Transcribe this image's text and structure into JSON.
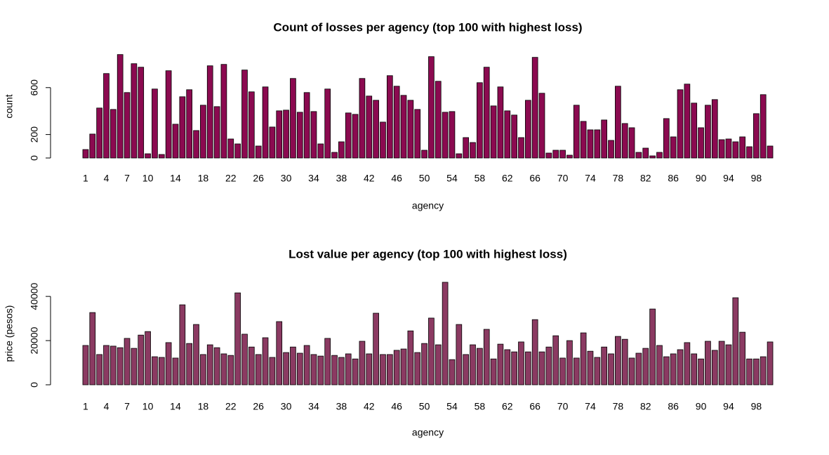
{
  "chart_data": [
    {
      "type": "bar",
      "title": "Count of losses per agency (top 100 with highest loss)",
      "x_label": "agency",
      "y_label": "count",
      "color": "#8b0a50",
      "categories": [
        "1",
        null,
        null,
        "4",
        null,
        null,
        "7",
        null,
        null,
        "10",
        null,
        null,
        null,
        "14",
        null,
        null,
        null,
        "18",
        null,
        null,
        null,
        "22",
        null,
        null,
        null,
        "26",
        null,
        null,
        null,
        "30",
        null,
        null,
        null,
        "34",
        null,
        null,
        null,
        "38",
        null,
        null,
        null,
        "42",
        null,
        null,
        null,
        "46",
        null,
        null,
        null,
        "50",
        null,
        null,
        null,
        "54",
        null,
        null,
        null,
        "58",
        null,
        null,
        null,
        "62",
        null,
        null,
        null,
        "66",
        null,
        null,
        null,
        "70",
        null,
        null,
        null,
        "74",
        null,
        null,
        null,
        "78",
        null,
        null,
        null,
        "82",
        null,
        null,
        null,
        "86",
        null,
        null,
        null,
        "90",
        null,
        null,
        null,
        "94",
        null,
        null,
        null,
        "98",
        null,
        null
      ],
      "values": [
        72,
        204,
        426,
        720,
        414,
        882,
        558,
        804,
        774,
        36,
        588,
        30,
        744,
        288,
        522,
        582,
        234,
        450,
        786,
        438,
        798,
        162,
        120,
        750,
        564,
        102,
        606,
        264,
        402,
        408,
        678,
        390,
        558,
        396,
        120,
        588,
        48,
        138,
        384,
        372,
        678,
        528,
        492,
        306,
        702,
        612,
        534,
        492,
        414,
        66,
        864,
        654,
        390,
        396,
        36,
        174,
        132,
        642,
        774,
        444,
        606,
        402,
        366,
        174,
        492,
        858,
        552,
        42,
        66,
        66,
        24,
        450,
        312,
        240,
        240,
        324,
        150,
        612,
        294,
        258,
        48,
        84,
        18,
        48,
        336,
        180,
        582,
        630,
        468,
        258,
        450,
        498,
        156,
        162,
        138,
        180,
        96,
        378,
        540,
        102
      ],
      "ylim": [
        0,
        880
      ],
      "yticks": [
        0,
        200,
        600
      ]
    },
    {
      "type": "bar",
      "title": "Lost value per agency (top 100 with highest loss)",
      "x_label": "agency",
      "y_label": "price (pesos)",
      "color": "#8b3a62",
      "categories": [
        "1",
        null,
        null,
        "4",
        null,
        null,
        "7",
        null,
        null,
        "10",
        null,
        null,
        null,
        "14",
        null,
        null,
        null,
        "18",
        null,
        null,
        null,
        "22",
        null,
        null,
        null,
        "26",
        null,
        null,
        null,
        "30",
        null,
        null,
        null,
        "34",
        null,
        null,
        null,
        "38",
        null,
        null,
        null,
        "42",
        null,
        null,
        null,
        "46",
        null,
        null,
        null,
        "50",
        null,
        null,
        null,
        "54",
        null,
        null,
        null,
        "58",
        null,
        null,
        null,
        "62",
        null,
        null,
        null,
        "66",
        null,
        null,
        null,
        "70",
        null,
        null,
        null,
        "74",
        null,
        null,
        null,
        "78",
        null,
        null,
        null,
        "82",
        null,
        null,
        null,
        "86",
        null,
        null,
        null,
        "90",
        null,
        null,
        null,
        "94",
        null,
        null,
        null,
        "98",
        null,
        null
      ],
      "values": [
        17800,
        32700,
        13700,
        17800,
        17500,
        16800,
        21000,
        16500,
        22500,
        24100,
        12700,
        12400,
        19100,
        12100,
        36200,
        18700,
        27300,
        13700,
        18100,
        16800,
        14000,
        13300,
        41600,
        22900,
        17100,
        13700,
        21300,
        12400,
        28600,
        14600,
        17100,
        14300,
        17800,
        13700,
        13000,
        21000,
        13300,
        12400,
        14000,
        11700,
        19700,
        14000,
        32400,
        13700,
        13700,
        15600,
        16200,
        24400,
        14600,
        18700,
        30200,
        18100,
        46400,
        11400,
        27300,
        13700,
        18100,
        16500,
        25100,
        11700,
        18400,
        15900,
        14900,
        19400,
        14900,
        29500,
        14900,
        17100,
        22200,
        12100,
        20000,
        12100,
        23500,
        15200,
        12400,
        17100,
        14000,
        21900,
        20600,
        12100,
        14300,
        16500,
        34300,
        17800,
        12700,
        14000,
        15900,
        19100,
        14000,
        11700,
        19700,
        15600,
        19700,
        18100,
        39400,
        23800,
        11700,
        11700,
        12700,
        19400
      ],
      "ylim": [
        0,
        46400
      ],
      "yticks": [
        0,
        20000,
        40000
      ]
    }
  ]
}
